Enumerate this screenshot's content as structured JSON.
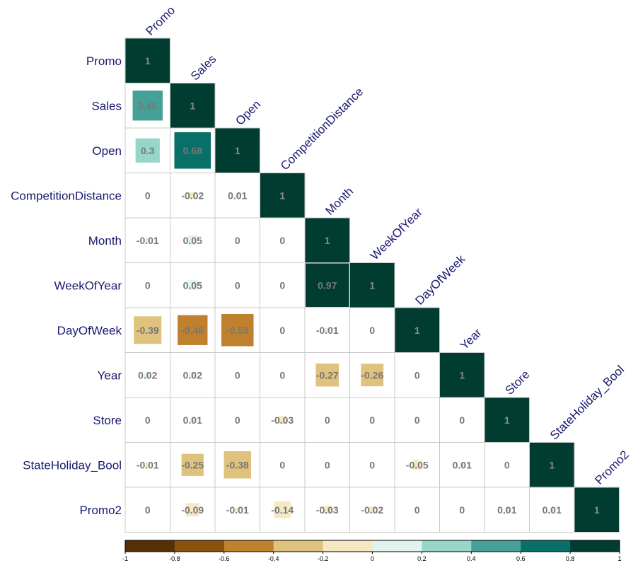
{
  "chart_data": {
    "type": "heatmap",
    "layout": "lower-triangular correlation matrix",
    "variables": [
      "Promo",
      "Sales",
      "Open",
      "CompetitionDistance",
      "Month",
      "WeekOfYear",
      "DayOfWeek",
      "Year",
      "Store",
      "StateHoliday_Bool",
      "Promo2"
    ],
    "matrix": [
      [
        1
      ],
      [
        0.46,
        1
      ],
      [
        0.3,
        0.68,
        1
      ],
      [
        0,
        -0.02,
        0.01,
        1
      ],
      [
        -0.01,
        0.05,
        0,
        0,
        1
      ],
      [
        0,
        0.05,
        0,
        0,
        0.97,
        1
      ],
      [
        -0.39,
        -0.46,
        -0.53,
        0,
        -0.01,
        0,
        1
      ],
      [
        0.02,
        0.02,
        0,
        0,
        -0.27,
        -0.26,
        0,
        1
      ],
      [
        0,
        0.01,
        0,
        -0.03,
        0,
        0,
        0,
        0,
        1
      ],
      [
        -0.01,
        -0.25,
        -0.38,
        0,
        0,
        0,
        -0.05,
        0.01,
        0,
        1
      ],
      [
        0,
        -0.09,
        -0.01,
        -0.14,
        -0.03,
        -0.02,
        0,
        0,
        0.01,
        0.01,
        1
      ]
    ],
    "labels": [
      [
        "1"
      ],
      [
        "0.46",
        "1"
      ],
      [
        "0.3",
        "0.68",
        "1"
      ],
      [
        "0",
        "-0.02",
        "0.01",
        "1"
      ],
      [
        "-0.01",
        "0.05",
        "0",
        "0",
        "1"
      ],
      [
        "0",
        "0.05",
        "0",
        "0",
        "0.97",
        "1"
      ],
      [
        "-0.39",
        "-0.46",
        "-0.53",
        "0",
        "-0.01",
        "0",
        "1"
      ],
      [
        "0.02",
        "0.02",
        "0",
        "0",
        "-0.27",
        "-0.26",
        "0",
        "1"
      ],
      [
        "0",
        "0.01",
        "0",
        "-0.03",
        "0",
        "0",
        "0",
        "0",
        "1"
      ],
      [
        "-0.01",
        "-0.25",
        "-0.38",
        "0",
        "0",
        "0",
        "-0.05",
        "0.01",
        "0",
        "1"
      ],
      [
        "0",
        "-0.09",
        "-0.01",
        "-0.14",
        "-0.03",
        "-0.02",
        "0",
        "0",
        "0.01",
        "0.01",
        "1"
      ]
    ],
    "colorbar": {
      "min": -1,
      "max": 1,
      "ticks": [
        "-1",
        "-0.8",
        "-0.6",
        "-0.4",
        "-0.2",
        "0",
        "0.2",
        "0.4",
        "0.6",
        "0.8",
        "1"
      ],
      "colors": [
        "#543005",
        "#8c510a",
        "#bf812d",
        "#dfc27d",
        "#f6e8c3",
        "#e0f3ee",
        "#97d6cb",
        "#45a197",
        "#087068",
        "#003d30"
      ],
      "placement": "bottom"
    },
    "grid": true
  }
}
